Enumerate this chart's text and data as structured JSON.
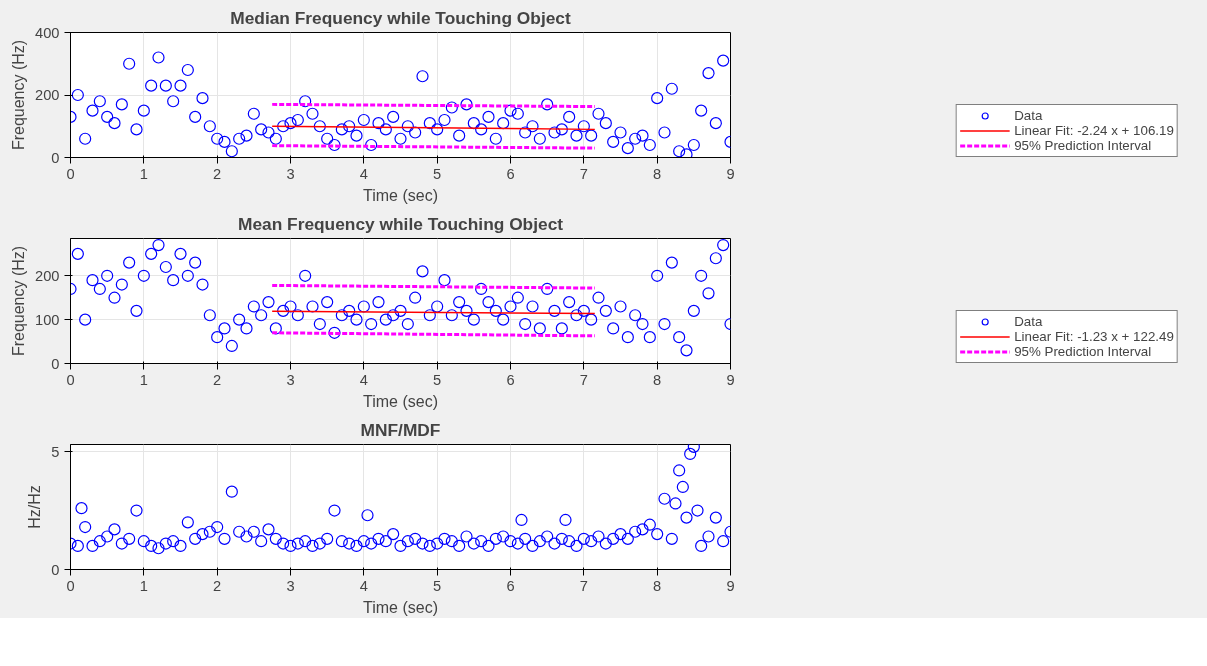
{
  "chart_data": [
    {
      "type": "scatter",
      "title": "Median Frequency while Touching Object",
      "xlabel": "Time (sec)",
      "ylabel": "Frequency (Hz)",
      "xlim": [
        0,
        9
      ],
      "xticks": [
        0,
        1,
        2,
        3,
        4,
        5,
        6,
        7,
        8,
        9
      ],
      "ylim": [
        0,
        400
      ],
      "yticks": [
        0,
        200,
        400
      ],
      "grid": true,
      "legend": "bottom right",
      "series": [
        {
          "name": "Data",
          "color": "#0000ff",
          "marker": "circle",
          "x": [
            0,
            0.1,
            0.2,
            0.3,
            0.4,
            0.5,
            0.6,
            0.7,
            0.8,
            0.9,
            1,
            1.1,
            1.2,
            1.3,
            1.4,
            1.5,
            1.6,
            1.7,
            1.8,
            1.9,
            2,
            2.1,
            2.2,
            2.3,
            2.4,
            2.5,
            2.6,
            2.7,
            2.8,
            2.9,
            3,
            3.1,
            3.2,
            3.3,
            3.4,
            3.5,
            3.6,
            3.7,
            3.8,
            3.9,
            4,
            4.1,
            4.2,
            4.3,
            4.4,
            4.5,
            4.6,
            4.7,
            4.8,
            4.9,
            5,
            5.1,
            5.2,
            5.3,
            5.4,
            5.5,
            5.6,
            5.7,
            5.8,
            5.9,
            6,
            6.1,
            6.2,
            6.3,
            6.4,
            6.5,
            6.6,
            6.7,
            6.8,
            6.9,
            7,
            7.1,
            7.2,
            7.3,
            7.4,
            7.5,
            7.6,
            7.7,
            7.8,
            7.9,
            8,
            8.1,
            8.2,
            8.3,
            8.4,
            8.5,
            8.6,
            8.7,
            8.8,
            8.9,
            9
          ],
          "values": [
            130,
            200,
            60,
            150,
            180,
            130,
            110,
            170,
            300,
            90,
            150,
            230,
            320,
            230,
            180,
            230,
            280,
            130,
            190,
            100,
            60,
            50,
            20,
            60,
            70,
            140,
            90,
            80,
            60,
            100,
            110,
            120,
            180,
            140,
            100,
            60,
            40,
            90,
            100,
            70,
            120,
            40,
            110,
            90,
            130,
            60,
            100,
            80,
            260,
            110,
            90,
            120,
            160,
            70,
            170,
            110,
            90,
            130,
            60,
            110,
            150,
            140,
            80,
            100,
            60,
            170,
            80,
            90,
            130,
            70,
            100,
            70,
            140,
            110,
            50,
            80,
            30,
            60,
            70,
            40,
            190,
            80,
            220,
            20,
            10,
            40,
            150,
            270,
            110,
            310,
            50
          ]
        },
        {
          "name": "Linear Fit: -2.24 x + 106.19",
          "type": "line",
          "color": "#ff0000",
          "line_style": "solid",
          "x": [
            2.75,
            7.15
          ],
          "values": [
            100,
            90
          ]
        },
        {
          "name": "95% Prediction Interval",
          "type": "line",
          "color": "#ff00ff",
          "line_style": "dashed",
          "x": [
            2.75,
            7.15
          ],
          "values": [
            170,
            163
          ]
        },
        {
          "type": "line",
          "color": "#ff00ff",
          "line_style": "dashed",
          "x": [
            2.75,
            7.15
          ],
          "values": [
            38,
            30
          ]
        }
      ]
    },
    {
      "type": "scatter",
      "title": "Mean Frequency while Touching Object",
      "xlabel": "Time (sec)",
      "ylabel": "Frequency (Hz)",
      "xlim": [
        0,
        9
      ],
      "xticks": [
        0,
        1,
        2,
        3,
        4,
        5,
        6,
        7,
        8,
        9
      ],
      "ylim": [
        0,
        285
      ],
      "yticks": [
        0,
        100,
        200
      ],
      "grid": true,
      "legend": "bottom right",
      "series": [
        {
          "name": "Data",
          "color": "#0000ff",
          "marker": "circle",
          "x": [
            0,
            0.1,
            0.2,
            0.3,
            0.4,
            0.5,
            0.6,
            0.7,
            0.8,
            0.9,
            1,
            1.1,
            1.2,
            1.3,
            1.4,
            1.5,
            1.6,
            1.7,
            1.8,
            1.9,
            2,
            2.1,
            2.2,
            2.3,
            2.4,
            2.5,
            2.6,
            2.7,
            2.8,
            2.9,
            3,
            3.1,
            3.2,
            3.3,
            3.4,
            3.5,
            3.6,
            3.7,
            3.8,
            3.9,
            4,
            4.1,
            4.2,
            4.3,
            4.4,
            4.5,
            4.6,
            4.7,
            4.8,
            4.9,
            5,
            5.1,
            5.2,
            5.3,
            5.4,
            5.5,
            5.6,
            5.7,
            5.8,
            5.9,
            6,
            6.1,
            6.2,
            6.3,
            6.4,
            6.5,
            6.6,
            6.7,
            6.8,
            6.9,
            7,
            7.1,
            7.2,
            7.3,
            7.4,
            7.5,
            7.6,
            7.7,
            7.8,
            7.9,
            8,
            8.1,
            8.2,
            8.3,
            8.4,
            8.5,
            8.6,
            8.7,
            8.8,
            8.9,
            9
          ],
          "values": [
            170,
            250,
            100,
            190,
            170,
            200,
            150,
            180,
            230,
            120,
            200,
            250,
            270,
            220,
            190,
            250,
            200,
            230,
            180,
            110,
            60,
            80,
            40,
            100,
            80,
            130,
            110,
            140,
            80,
            120,
            130,
            110,
            200,
            130,
            90,
            140,
            70,
            110,
            120,
            100,
            130,
            90,
            140,
            100,
            110,
            120,
            90,
            150,
            210,
            110,
            130,
            190,
            110,
            140,
            120,
            100,
            170,
            140,
            120,
            100,
            130,
            150,
            90,
            130,
            80,
            170,
            120,
            80,
            140,
            110,
            120,
            100,
            150,
            120,
            80,
            130,
            60,
            110,
            90,
            60,
            200,
            90,
            230,
            60,
            30,
            120,
            200,
            160,
            240,
            270,
            90
          ]
        },
        {
          "name": "Linear Fit: -1.23 x + 122.49",
          "type": "line",
          "color": "#ff0000",
          "line_style": "solid",
          "x": [
            2.75,
            7.15
          ],
          "values": [
            119,
            114
          ]
        },
        {
          "name": "95% Prediction Interval",
          "type": "line",
          "color": "#ff00ff",
          "line_style": "dashed",
          "x": [
            2.75,
            7.15
          ],
          "values": [
            178,
            172
          ]
        },
        {
          "type": "line",
          "color": "#ff00ff",
          "line_style": "dashed",
          "x": [
            2.75,
            7.15
          ],
          "values": [
            70,
            63
          ]
        }
      ]
    },
    {
      "type": "scatter",
      "title": "MNF/MDF",
      "xlabel": "Time (sec)",
      "ylabel": "Hz/Hz",
      "xlim": [
        0,
        9
      ],
      "xticks": [
        0,
        1,
        2,
        3,
        4,
        5,
        6,
        7,
        8,
        9
      ],
      "ylim": [
        0,
        5.3
      ],
      "yticks": [
        0,
        5
      ],
      "grid": true,
      "marker": "circle",
      "series": [
        {
          "color": "#0000ff",
          "x": [
            0,
            0.1,
            0.15,
            0.2,
            0.3,
            0.4,
            0.5,
            0.6,
            0.7,
            0.8,
            0.9,
            1,
            1.1,
            1.2,
            1.3,
            1.4,
            1.5,
            1.6,
            1.7,
            1.8,
            1.9,
            2,
            2.1,
            2.2,
            2.3,
            2.4,
            2.5,
            2.6,
            2.7,
            2.8,
            2.9,
            3,
            3.1,
            3.2,
            3.3,
            3.4,
            3.5,
            3.6,
            3.7,
            3.8,
            3.9,
            4,
            4.05,
            4.1,
            4.2,
            4.3,
            4.4,
            4.5,
            4.6,
            4.7,
            4.8,
            4.9,
            5,
            5.1,
            5.2,
            5.3,
            5.4,
            5.5,
            5.6,
            5.7,
            5.8,
            5.9,
            6,
            6.1,
            6.15,
            6.2,
            6.3,
            6.4,
            6.5,
            6.6,
            6.7,
            6.75,
            6.8,
            6.9,
            7,
            7.1,
            7.2,
            7.3,
            7.4,
            7.5,
            7.6,
            7.7,
            7.8,
            7.9,
            8,
            8.1,
            8.2,
            8.25,
            8.3,
            8.35,
            8.4,
            8.45,
            8.5,
            8.55,
            8.6,
            8.7,
            8.8,
            8.9,
            9
          ],
          "values": [
            1.1,
            1.0,
            2.6,
            1.8,
            1.0,
            1.2,
            1.4,
            1.7,
            1.1,
            1.3,
            2.5,
            1.2,
            1.0,
            0.9,
            1.1,
            1.2,
            1.0,
            2.0,
            1.3,
            1.5,
            1.6,
            1.8,
            1.3,
            3.3,
            1.6,
            1.4,
            1.6,
            1.2,
            1.7,
            1.3,
            1.1,
            1.0,
            1.1,
            1.2,
            1.0,
            1.1,
            1.3,
            2.5,
            1.2,
            1.1,
            1.0,
            1.2,
            2.3,
            1.1,
            1.3,
            1.2,
            1.5,
            1.0,
            1.2,
            1.3,
            1.1,
            1.0,
            1.1,
            1.3,
            1.2,
            1.0,
            1.4,
            1.1,
            1.2,
            1.0,
            1.3,
            1.4,
            1.2,
            1.1,
            2.1,
            1.3,
            1.0,
            1.2,
            1.4,
            1.1,
            1.3,
            2.1,
            1.2,
            1.0,
            1.3,
            1.2,
            1.4,
            1.1,
            1.3,
            1.5,
            1.3,
            1.6,
            1.7,
            1.9,
            1.5,
            3.0,
            1.3,
            2.8,
            4.2,
            3.5,
            2.2,
            4.9,
            5.2,
            2.5,
            1.0,
            1.4,
            2.2,
            1.2,
            1.6
          ]
        }
      ]
    }
  ]
}
